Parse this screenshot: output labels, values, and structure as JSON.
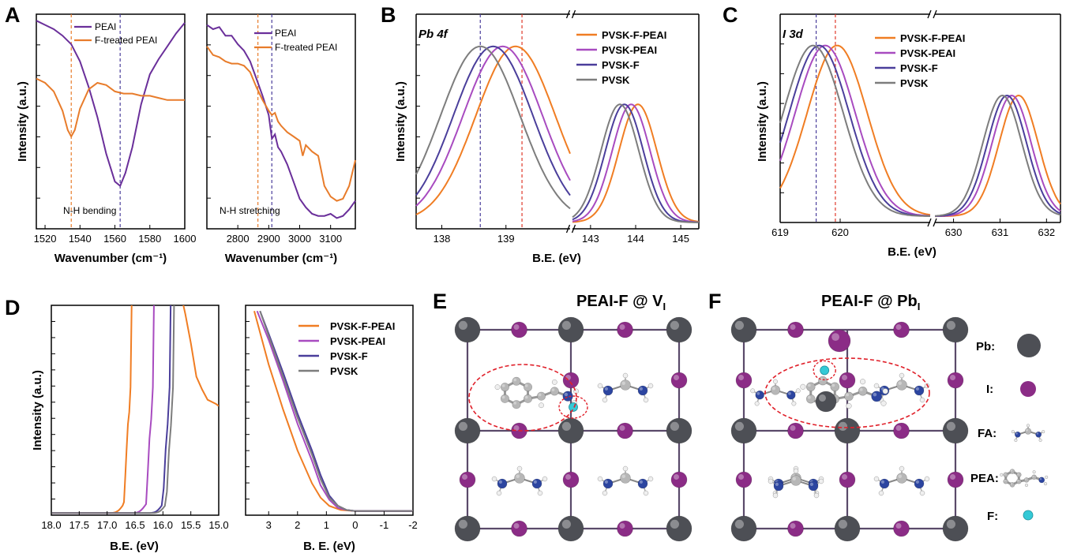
{
  "colors": {
    "purple": "#6a2f9a",
    "orange": "#e87c2b",
    "pvsk_f_peai": "#f07d23",
    "pvsk_peai": "#a84bc0",
    "pvsk_f": "#4a3e9b",
    "pvsk": "#7d7d7d",
    "pb_atom": "#4d4f55",
    "i_atom": "#8b2c86",
    "n_atom": "#2c45a0",
    "c_atom": "#b7b7b7",
    "h_atom": "#efefef",
    "f_atom": "#34c9d6"
  },
  "panels": {
    "A": "A",
    "B": "B",
    "C": "C",
    "D": "D",
    "E": "E",
    "F": "F"
  },
  "chart_data": [
    {
      "id": "A1",
      "type": "line",
      "xlabel": "Wavenumber (cm⁻¹)",
      "ylabel": "Intensity (a.u.)",
      "xlim": [
        1515,
        1600
      ],
      "xticks": [
        "1520",
        "1540",
        "1560",
        "1580",
        "1600"
      ],
      "annotation": "N-H bending",
      "legend": [
        "PEAI",
        "F-treated PEAI"
      ],
      "series": [
        {
          "name": "PEAI",
          "x": [
            1515,
            1520,
            1525,
            1530,
            1535,
            1540,
            1545,
            1550,
            1555,
            1560,
            1563,
            1566,
            1570,
            1575,
            1580,
            1585,
            1590,
            1595,
            1600
          ],
          "y": [
            0.97,
            0.95,
            0.93,
            0.9,
            0.86,
            0.78,
            0.66,
            0.52,
            0.35,
            0.22,
            0.2,
            0.26,
            0.38,
            0.58,
            0.72,
            0.79,
            0.85,
            0.91,
            0.96
          ]
        },
        {
          "name": "F-treated PEAI",
          "x": [
            1515,
            1520,
            1525,
            1530,
            1533,
            1535,
            1537,
            1540,
            1545,
            1550,
            1555,
            1560,
            1565,
            1570,
            1575,
            1580,
            1585,
            1590,
            1595,
            1600
          ],
          "y": [
            0.7,
            0.68,
            0.64,
            0.55,
            0.46,
            0.43,
            0.46,
            0.56,
            0.65,
            0.68,
            0.67,
            0.64,
            0.63,
            0.63,
            0.62,
            0.62,
            0.61,
            0.6,
            0.6,
            0.6
          ]
        }
      ],
      "markers": [
        1535,
        1563
      ]
    },
    {
      "id": "A2",
      "type": "line",
      "xlabel": "Wavenumber (cm⁻¹)",
      "ylabel": "",
      "xlim": [
        2700,
        3180
      ],
      "xticks": [
        "2800",
        "2900",
        "3000",
        "3100"
      ],
      "annotation": "N-H stretching",
      "legend": [
        "PEAI",
        "F-treated PEAI"
      ],
      "series": [
        {
          "name": "PEAI",
          "x": [
            2700,
            2720,
            2740,
            2760,
            2780,
            2800,
            2820,
            2840,
            2860,
            2880,
            2900,
            2910,
            2920,
            2930,
            2940,
            2960,
            2980,
            3000,
            3020,
            3040,
            3060,
            3080,
            3100,
            3120,
            3140,
            3160,
            3180
          ],
          "y": [
            0.95,
            0.93,
            0.94,
            0.9,
            0.9,
            0.86,
            0.83,
            0.78,
            0.7,
            0.62,
            0.53,
            0.42,
            0.44,
            0.38,
            0.36,
            0.3,
            0.22,
            0.14,
            0.1,
            0.07,
            0.06,
            0.06,
            0.07,
            0.05,
            0.06,
            0.09,
            0.13
          ]
        },
        {
          "name": "F-treated PEAI",
          "x": [
            2700,
            2720,
            2740,
            2760,
            2780,
            2800,
            2820,
            2840,
            2860,
            2880,
            2900,
            2910,
            2920,
            2930,
            2940,
            2960,
            2980,
            3000,
            3010,
            3020,
            3040,
            3060,
            3080,
            3100,
            3120,
            3140,
            3160,
            3180
          ],
          "y": [
            0.85,
            0.81,
            0.8,
            0.78,
            0.77,
            0.77,
            0.76,
            0.73,
            0.66,
            0.6,
            0.55,
            0.53,
            0.54,
            0.5,
            0.48,
            0.45,
            0.43,
            0.41,
            0.34,
            0.39,
            0.36,
            0.34,
            0.2,
            0.15,
            0.13,
            0.14,
            0.2,
            0.32
          ]
        }
      ],
      "markers": [
        2865,
        2910
      ]
    },
    {
      "id": "B",
      "type": "line",
      "xlabel": "B.E. (eV)",
      "ylabel": "Intensity (a.u.)",
      "title": "Pb 4f",
      "segments": [
        [
          137.6,
          140.0
        ],
        [
          142.6,
          145.4
        ]
      ],
      "xticks": [
        "138",
        "139",
        "143",
        "144",
        "145"
      ],
      "legend": [
        "PVSK-F-PEAI",
        "PVSK-PEAI",
        "PVSK-F",
        "PVSK"
      ],
      "peaks": [
        {
          "name": "PVSK-F-PEAI",
          "p1": 139.15,
          "p2": 144.05
        },
        {
          "name": "PVSK-PEAI",
          "p1": 138.95,
          "p2": 143.9
        },
        {
          "name": "PVSK-F",
          "p1": 138.8,
          "p2": 143.75
        },
        {
          "name": "PVSK",
          "p1": 138.6,
          "p2": 143.65
        }
      ],
      "markers": [
        138.6,
        139.25
      ]
    },
    {
      "id": "C",
      "type": "line",
      "xlabel": "B.E. (eV)",
      "ylabel": "Intensity (a.u.)",
      "title": "I 3d",
      "segments": [
        [
          619.0,
          621.5
        ],
        [
          629.6,
          632.3
        ]
      ],
      "xticks": [
        "619",
        "620",
        "630",
        "631",
        "632"
      ],
      "legend": [
        "PVSK-F-PEAI",
        "PVSK-PEAI",
        "PVSK-F",
        "PVSK"
      ],
      "peaks": [
        {
          "name": "PVSK-F-PEAI",
          "p1": 619.95,
          "p2": 631.4
        },
        {
          "name": "PVSK-PEAI",
          "p1": 619.75,
          "p2": 631.25
        },
        {
          "name": "PVSK-F",
          "p1": 619.65,
          "p2": 631.15
        },
        {
          "name": "PVSK",
          "p1": 619.55,
          "p2": 631.05
        }
      ],
      "markers": [
        619.6,
        619.92
      ]
    },
    {
      "id": "D1",
      "type": "line",
      "xlabel": "B.E. (eV)",
      "ylabel": "Intensity (a.u.)",
      "xlim": [
        18.0,
        15.0
      ],
      "xticks": [
        "18.0",
        "17.5",
        "17.0",
        "16.5",
        "16.0",
        "15.5",
        "15.0"
      ],
      "legend": [
        "PVSK-F-PEAI",
        "PVSK-PEAI",
        "PVSK-F",
        "PVSK"
      ],
      "cutoffs": [
        {
          "name": "PVSK-F-PEAI",
          "cutoff": 16.62
        },
        {
          "name": "PVSK-PEAI",
          "cutoff": 16.22
        },
        {
          "name": "PVSK-F",
          "cutoff": 15.92
        },
        {
          "name": "PVSK",
          "cutoff": 15.86
        }
      ]
    },
    {
      "id": "D2",
      "type": "line",
      "xlabel": "B. E. (eV)",
      "ylabel": "",
      "xlim": [
        3.8,
        -2.0
      ],
      "xticks": [
        "3",
        "2",
        "1",
        "0",
        "-1",
        "-2"
      ],
      "legend": [
        "PVSK-F-PEAI",
        "PVSK-PEAI",
        "PVSK-F",
        "PVSK"
      ],
      "onsets": [
        {
          "name": "PVSK-F-PEAI",
          "x": [
            3.5,
            3.0,
            2.5,
            2.0,
            1.5,
            1.2,
            0.9,
            0.5,
            0.0,
            -2.0
          ],
          "y": [
            0.98,
            0.72,
            0.5,
            0.3,
            0.14,
            0.07,
            0.03,
            0.01,
            0.005,
            0.005
          ]
        },
        {
          "name": "PVSK-PEAI",
          "x": [
            3.4,
            3.0,
            2.5,
            2.0,
            1.5,
            1.2,
            0.9,
            0.6,
            0.3,
            0.0,
            -2.0
          ],
          "y": [
            0.98,
            0.84,
            0.64,
            0.43,
            0.25,
            0.13,
            0.06,
            0.02,
            0.01,
            0.005,
            0.005
          ]
        },
        {
          "name": "PVSK-F",
          "x": [
            3.3,
            3.0,
            2.5,
            2.0,
            1.5,
            1.2,
            0.9,
            0.6,
            0.3,
            0.0,
            -2.0
          ],
          "y": [
            0.98,
            0.87,
            0.68,
            0.48,
            0.3,
            0.18,
            0.08,
            0.03,
            0.01,
            0.005,
            0.005
          ]
        },
        {
          "name": "PVSK",
          "x": [
            3.3,
            3.0,
            2.5,
            2.0,
            1.5,
            1.2,
            0.9,
            0.6,
            0.3,
            0.0,
            -2.0
          ],
          "y": [
            0.98,
            0.86,
            0.66,
            0.46,
            0.28,
            0.16,
            0.07,
            0.03,
            0.01,
            0.005,
            0.005
          ]
        }
      ]
    }
  ],
  "structures": {
    "E_title": "PEAI-F @ V",
    "E_sub": "I",
    "F_title": "PEAI-F @ Pb",
    "F_sub": "I",
    "legend": {
      "pb": "Pb:",
      "i": "I:",
      "fa": "FA:",
      "pea": "PEA:",
      "f": "F:"
    }
  }
}
